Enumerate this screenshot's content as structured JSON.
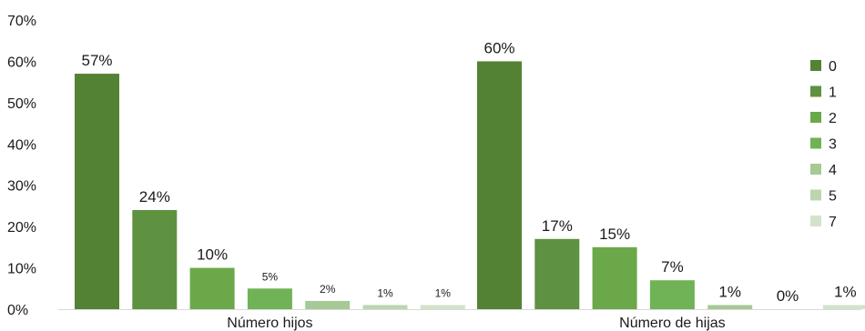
{
  "chart_data": {
    "type": "bar",
    "categories": [
      "Número hijos",
      "Número de hijas"
    ],
    "series": [
      {
        "name": "0",
        "color": "#548235",
        "values": [
          57,
          60
        ],
        "labels": [
          "57%",
          "60%"
        ]
      },
      {
        "name": "1",
        "color": "#5e9140",
        "values": [
          24,
          17
        ],
        "labels": [
          "24%",
          "17%"
        ]
      },
      {
        "name": "2",
        "color": "#6aa84a",
        "values": [
          10,
          15
        ],
        "labels": [
          "10%",
          "15%"
        ]
      },
      {
        "name": "3",
        "color": "#70b356",
        "values": [
          5,
          7
        ],
        "labels": [
          "5%",
          "7%"
        ]
      },
      {
        "name": "4",
        "color": "#a6c995",
        "values": [
          2,
          1
        ],
        "labels": [
          "2%",
          "1%"
        ]
      },
      {
        "name": "5",
        "color": "#bcd5b0",
        "values": [
          1,
          0
        ],
        "labels": [
          "1%",
          "0%"
        ]
      },
      {
        "name": "7",
        "color": "#d3e3cb",
        "values": [
          1,
          1
        ],
        "labels": [
          "1%",
          "1%"
        ]
      }
    ],
    "ylim": [
      0,
      70
    ],
    "yticks": [
      "0%",
      "10%",
      "20%",
      "30%",
      "40%",
      "50%",
      "60%",
      "70%"
    ],
    "grid": false,
    "legend": "right"
  }
}
